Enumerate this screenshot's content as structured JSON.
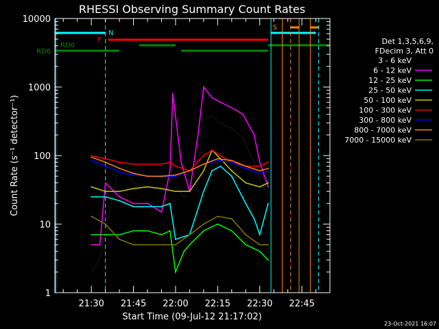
{
  "chart_data": {
    "type": "line",
    "title": "RHESSI Observing Summary Count Rates",
    "xlabel": "Start Time (09-Jul-12 21:17:02)",
    "ylabel": "Count Rate (s⁻¹ detector⁻¹)",
    "y_scale": "log",
    "ylim": [
      1,
      10000
    ],
    "xlim": [
      "21:17",
      "22:55"
    ],
    "x_ticks": [
      "21:30",
      "21:45",
      "22:00",
      "22:15",
      "22:30",
      "22:45"
    ],
    "y_ticks": [
      "1",
      "10",
      "100",
      "1000",
      "10000"
    ],
    "legend_header": [
      "Det 1,3,5,6,9,",
      "FDecim 3, Att 0"
    ],
    "legend_position": "right",
    "timestamp": "23-Oct-2021 16:07",
    "flag_labels": {
      "saa": "S",
      "night": "N",
      "flare": "F",
      "decim": "RD0",
      "decim6": "RD6"
    },
    "flag_colors": {
      "saa": "#ff8800",
      "night": "#00ffff",
      "flare": "#ff0000",
      "decim": "#008800"
    },
    "series": [
      {
        "name": "3 - 6 keV",
        "color": "#000000",
        "x": [
          "21:30",
          "21:33",
          "21:40",
          "21:45",
          "21:50",
          "21:55",
          "22:00",
          "22:03",
          "22:05",
          "22:08",
          "22:10",
          "22:13",
          "22:16",
          "22:20",
          "22:24",
          "22:28",
          "22:30",
          "22:33"
        ],
        "y": [
          2,
          3,
          75,
          40,
          35,
          30,
          35,
          25,
          40,
          60,
          350,
          380,
          300,
          250,
          180,
          80,
          45,
          25
        ]
      },
      {
        "name": "6 - 12 keV",
        "color": "#ff00ff",
        "x": [
          "21:30",
          "21:33",
          "21:35",
          "21:40",
          "21:45",
          "21:50",
          "21:55",
          "21:58",
          "21:59",
          "22:02",
          "22:05",
          "22:08",
          "22:10",
          "22:13",
          "22:16",
          "22:20",
          "22:24",
          "22:28",
          "22:30",
          "22:33"
        ],
        "y": [
          5,
          5,
          40,
          25,
          20,
          20,
          15,
          60,
          800,
          80,
          30,
          200,
          1000,
          700,
          600,
          500,
          400,
          200,
          80,
          35
        ]
      },
      {
        "name": "12 - 25 keV",
        "color": "#00ff00",
        "x": [
          "21:30",
          "21:35",
          "21:40",
          "21:45",
          "21:50",
          "21:55",
          "21:58",
          "22:00",
          "22:03",
          "22:05",
          "22:10",
          "22:15",
          "22:20",
          "22:25",
          "22:30",
          "22:33"
        ],
        "y": [
          7,
          7,
          7,
          8,
          8,
          7,
          8,
          2,
          4,
          5,
          8,
          10,
          8,
          5,
          4,
          3
        ]
      },
      {
        "name": "25 - 50 keV",
        "color": "#00ffff",
        "x": [
          "21:30",
          "21:35",
          "21:40",
          "21:45",
          "21:50",
          "21:55",
          "21:58",
          "22:00",
          "22:05",
          "22:10",
          "22:13",
          "22:16",
          "22:20",
          "22:25",
          "22:28",
          "22:30",
          "22:33"
        ],
        "y": [
          25,
          25,
          22,
          18,
          18,
          18,
          20,
          6,
          7,
          30,
          60,
          70,
          50,
          20,
          12,
          7,
          20
        ]
      },
      {
        "name": "50 - 100 keV",
        "color": "#cccc00",
        "x": [
          "21:30",
          "21:35",
          "21:40",
          "21:45",
          "21:50",
          "21:55",
          "22:00",
          "22:05",
          "22:10",
          "22:13",
          "22:16",
          "22:20",
          "22:25",
          "22:30",
          "22:33"
        ],
        "y": [
          35,
          30,
          30,
          33,
          35,
          33,
          30,
          30,
          60,
          120,
          90,
          60,
          40,
          35,
          40
        ]
      },
      {
        "name": "100 - 300 keV",
        "color": "#ff0000",
        "x": [
          "21:30",
          "21:35",
          "21:40",
          "21:45",
          "21:50",
          "21:55",
          "21:58",
          "22:00",
          "22:05",
          "22:10",
          "22:13",
          "22:16",
          "22:20",
          "22:25",
          "22:30",
          "22:33"
        ],
        "y": [
          100,
          90,
          80,
          75,
          75,
          75,
          80,
          70,
          60,
          100,
          120,
          100,
          80,
          70,
          70,
          80
        ]
      },
      {
        "name": "300 - 800 keV",
        "color": "#0000ff",
        "x": [
          "21:30",
          "21:35",
          "21:40",
          "21:45",
          "21:50",
          "21:55",
          "22:00",
          "22:05",
          "22:10",
          "22:15",
          "22:20",
          "22:25",
          "22:30",
          "22:33"
        ],
        "y": [
          85,
          70,
          58,
          52,
          50,
          48,
          50,
          60,
          75,
          85,
          80,
          65,
          55,
          60
        ]
      },
      {
        "name": "800 - 7000 keV",
        "color": "#ff8800",
        "x": [
          "21:30",
          "21:35",
          "21:40",
          "21:45",
          "21:50",
          "21:55",
          "22:00",
          "22:05",
          "22:10",
          "22:15",
          "22:20",
          "22:25",
          "22:30",
          "22:33"
        ],
        "y": [
          95,
          80,
          65,
          55,
          50,
          50,
          52,
          60,
          75,
          90,
          85,
          70,
          60,
          65
        ]
      },
      {
        "name": "7000 - 15000 keV",
        "color": "#887700",
        "x": [
          "21:30",
          "21:35",
          "21:40",
          "21:45",
          "21:50",
          "21:55",
          "22:00",
          "22:05",
          "22:10",
          "22:15",
          "22:20",
          "22:25",
          "22:30",
          "22:33"
        ],
        "y": [
          13,
          10,
          6,
          5,
          5,
          5,
          5,
          7,
          10,
          13,
          12,
          7,
          5,
          5
        ]
      }
    ]
  }
}
